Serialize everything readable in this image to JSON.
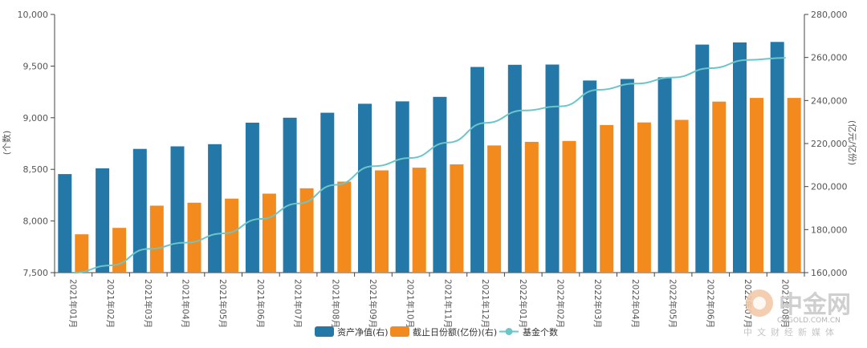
{
  "chart_data": {
    "type": "bar",
    "categories": [
      "2021年01月",
      "2021年02月",
      "2021年03月",
      "2021年04月",
      "2021年05月",
      "2021年06月",
      "2021年07月",
      "2021年08月",
      "2021年09月",
      "2021年10月",
      "2021年11月",
      "2021年12月",
      "2022年01月",
      "2022年02月",
      "2022年03月",
      "2022年04月",
      "2022年05月",
      "2022年06月",
      "2022年07月",
      "2022年08月"
    ],
    "series": [
      {
        "name": "资产净值(右)",
        "type": "bar",
        "axis": "right",
        "color": "#2378a8",
        "values": [
          205800,
          208500,
          217500,
          218700,
          219700,
          229700,
          232000,
          234300,
          238500,
          239600,
          241700,
          255600,
          256600,
          256700,
          249300,
          250000,
          250800,
          266000,
          267000,
          267200
        ]
      },
      {
        "name": "截止日份额(亿份)(右)",
        "type": "bar",
        "axis": "right",
        "color": "#f28a1d",
        "values": [
          177800,
          180800,
          191100,
          192500,
          194400,
          196700,
          199200,
          202300,
          207500,
          208800,
          210300,
          219100,
          220800,
          221200,
          228600,
          229800,
          231000,
          239500,
          241200,
          241200
        ]
      },
      {
        "name": "基金个数",
        "type": "line",
        "axis": "left",
        "color": "#6cc5c8",
        "values": [
          7500,
          7570,
          7730,
          7790,
          7880,
          8020,
          8170,
          8350,
          8530,
          8610,
          8760,
          8950,
          9070,
          9110,
          9270,
          9330,
          9390,
          9480,
          9560,
          9580
        ]
      }
    ],
    "y_left": {
      "label": "(个数)",
      "min": 7500,
      "max": 10000,
      "ticks": [
        "7,500",
        "8,000",
        "8,500",
        "9,000",
        "9,500",
        "10,000"
      ],
      "tick_values": [
        7500,
        8000,
        8500,
        9000,
        9500,
        10000
      ]
    },
    "y_right": {
      "label": "(亿元/亿份)",
      "min": 160000,
      "max": 280000,
      "ticks": [
        "160,000",
        "180,000",
        "200,000",
        "220,000",
        "240,000",
        "260,000",
        "280,000"
      ],
      "tick_values": [
        160000,
        180000,
        200000,
        220000,
        240000,
        260000,
        280000
      ]
    },
    "legend_position": "bottom-center",
    "grid": false
  },
  "legend": {
    "items": [
      {
        "label": "资产净值(右)",
        "color": "#2378a8",
        "kind": "bar"
      },
      {
        "label": "截止日份额(亿份)(右)",
        "color": "#f28a1d",
        "kind": "bar"
      },
      {
        "label": "基金个数",
        "color": "#6cc5c8",
        "kind": "line"
      }
    ]
  },
  "watermark": {
    "brand": "中金网",
    "domain": "CNGOLD.COM.CN",
    "tagline": "中文财经新媒体"
  }
}
